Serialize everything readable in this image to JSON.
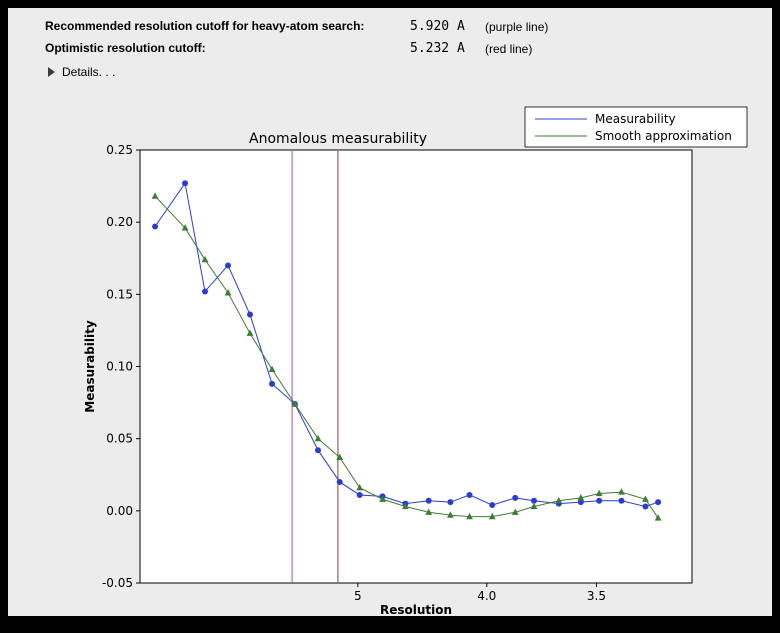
{
  "window": {
    "background": "#ececec",
    "frame_color": "#000000"
  },
  "header": {
    "rows": [
      {
        "label": "Recommended resolution cutoff for heavy-atom search:",
        "value": "5.920 A",
        "note": "(purple line)"
      },
      {
        "label": "Optimistic resolution cutoff:",
        "value": "5.232 A",
        "note": "(red line)"
      }
    ],
    "details_label": "Details. . ."
  },
  "chart_data": {
    "type": "line",
    "title": "Anomalous measurability",
    "title_x": 330,
    "xlabel": "Resolution",
    "ylabel": "Measurability",
    "x_scale": "1/d^2 (resolution in Angstroms, d decreasing left to right)",
    "xlim_s": [
      0.002,
      0.0983
    ],
    "ylim": [
      -0.05,
      0.25
    ],
    "yticks": [
      0.25,
      0.2,
      0.15,
      0.1,
      0.05,
      0,
      -0.05
    ],
    "ytick_labels": [
      "0.25",
      "0.20",
      "0.15",
      "0.10",
      "0.05",
      "0.00",
      "-0.05"
    ],
    "xticks_d": [
      5,
      4,
      3.5
    ],
    "xtick_labels": [
      "5",
      "4.0",
      "3.5"
    ],
    "grid": false,
    "plot_bg": "#ffffff",
    "x_d": [
      14.7,
      10.07,
      8.66,
      7.59,
      6.87,
      6.32,
      5.87,
      5.5,
      5.21,
      4.98,
      4.75,
      4.55,
      4.37,
      4.22,
      4.1,
      3.97,
      3.85,
      3.76,
      3.65,
      3.56,
      3.49,
      3.41,
      3.33,
      3.29
    ],
    "series": [
      {
        "name": "Measurability",
        "color": "#2b3cd0",
        "marker": "circle",
        "values": [
          0.197,
          0.227,
          0.152,
          0.17,
          0.136,
          0.088,
          0.074,
          0.042,
          0.02,
          0.011,
          0.01,
          0.005,
          0.007,
          0.006,
          0.011,
          0.004,
          0.009,
          0.007,
          0.005,
          0.006,
          0.007,
          0.007,
          0.003,
          0.006
        ]
      },
      {
        "name": "Smooth approximation",
        "color": "#3e7d35",
        "marker": "triangle",
        "values": [
          0.218,
          0.196,
          0.174,
          0.151,
          0.123,
          0.098,
          0.074,
          0.05,
          0.037,
          0.016,
          0.008,
          0.003,
          -0.001,
          -0.003,
          -0.004,
          -0.004,
          -0.001,
          0.003,
          0.007,
          0.009,
          0.012,
          0.013,
          0.008,
          -0.005
        ]
      }
    ],
    "vlines": [
      {
        "d": 5.92,
        "color": "#b748b8",
        "note": "purple line"
      },
      {
        "d": 5.232,
        "color": "#8e3b2b",
        "note": "red line"
      }
    ],
    "legend": {
      "position": "top-right",
      "entries": [
        "Measurability",
        "Smooth approximation"
      ]
    }
  }
}
